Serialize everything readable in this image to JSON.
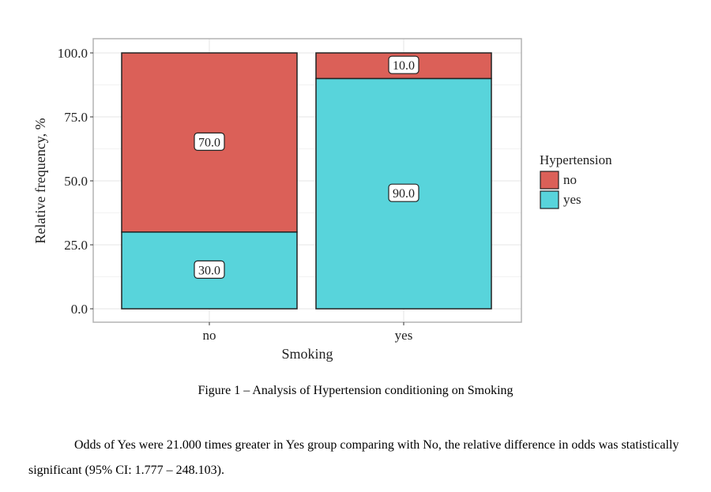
{
  "chart_data": {
    "type": "bar",
    "stacked": true,
    "categories": [
      "no",
      "yes"
    ],
    "series": [
      {
        "name": "no",
        "color": "#DB6058",
        "values": [
          70.0,
          10.0
        ],
        "labels": [
          "70.0",
          "10.0"
        ]
      },
      {
        "name": "yes",
        "color": "#58D4DB",
        "values": [
          30.0,
          90.0
        ],
        "labels": [
          "30.0",
          "90.0"
        ]
      }
    ],
    "xlabel": "Smoking",
    "ylabel": "Relative frequency, %",
    "ylim": [
      0,
      100
    ],
    "yticks": [
      "0.0",
      "25.0",
      "50.0",
      "75.0",
      "100.0"
    ],
    "grid": true,
    "legend": {
      "title": "Hypertension",
      "placement": "right"
    }
  },
  "caption": "Figure 1 – Analysis of Hypertension conditioning on Smoking",
  "paragraph": "Odds of Yes were 21.000 times greater in Yes group comparing with No, the relative difference in odds was statistically significant (95% CI: 1.777 – 248.103)."
}
